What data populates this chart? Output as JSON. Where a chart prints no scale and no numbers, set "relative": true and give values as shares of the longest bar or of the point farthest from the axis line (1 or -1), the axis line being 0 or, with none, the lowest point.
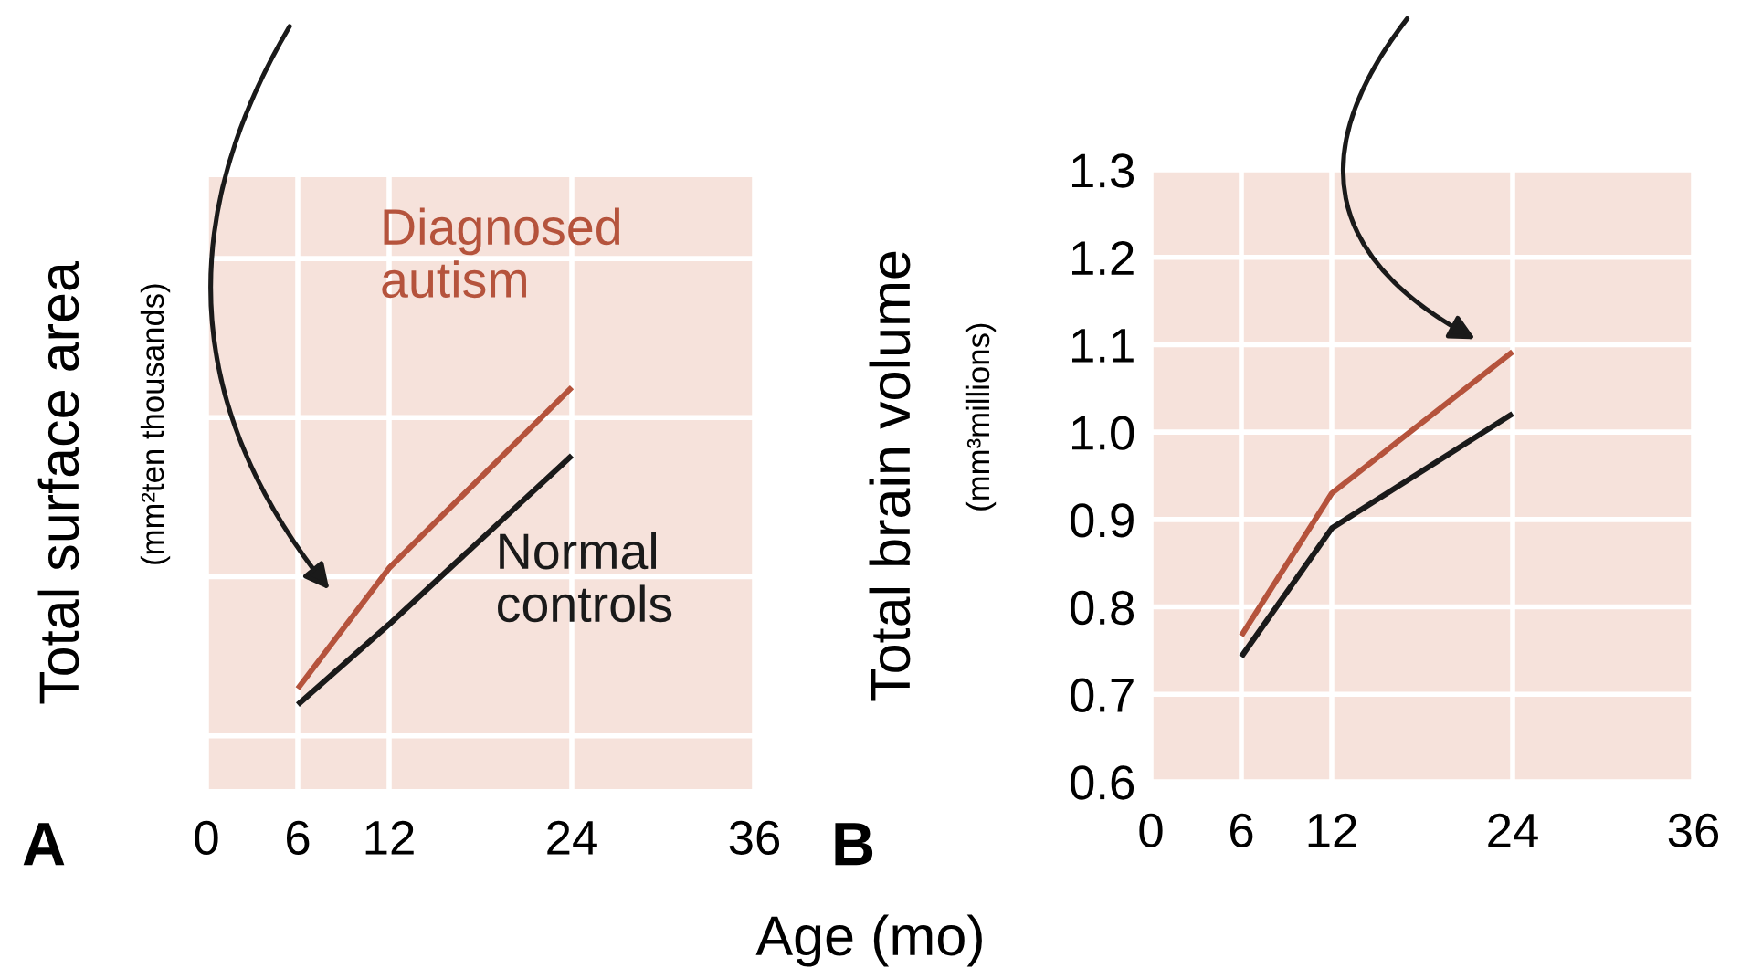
{
  "chart_data": [
    {
      "type": "line",
      "relative": true,
      "xlabel": "Age (mo)",
      "ylabel": "Total surface area\n(mm²ten thousands)",
      "x": [
        6,
        12,
        24
      ],
      "xlim": [
        0,
        36
      ],
      "xticks": [
        0,
        6,
        12,
        24,
        36
      ],
      "grid": true,
      "annotations": [
        "A"
      ],
      "series": [
        {
          "name": "Diagnosed autism",
          "color": "#b5533c",
          "values": [
            0.25,
            0.55,
            1
          ]
        },
        {
          "name": "Normal controls",
          "color": "#1a1a1a",
          "values": [
            0.21,
            0.41,
            0.83
          ]
        }
      ]
    },
    {
      "type": "line",
      "ylabel": "Total brain volume\n(mm³millions)",
      "x": [
        6,
        12,
        24
      ],
      "xlim": [
        0,
        36
      ],
      "xticks": [
        0,
        6,
        12,
        24,
        36
      ],
      "ylim": [
        0.6,
        1.3
      ],
      "yticks": [
        {
          "value": 0.6,
          "label": "0.6"
        },
        {
          "value": 0.7,
          "label": "0.7"
        },
        {
          "value": 0.8,
          "label": "0.8"
        },
        {
          "value": 0.9,
          "label": "0.9"
        },
        {
          "value": 1.0,
          "label": "1.0"
        },
        {
          "value": 1.1,
          "label": "1.1"
        },
        {
          "value": 1.2,
          "label": "1.2"
        },
        {
          "value": 1.3,
          "label": "1.3"
        }
      ],
      "grid": true,
      "annotations": [
        "B"
      ],
      "series": [
        {
          "color": "#b5533c",
          "values": [
            0.767,
            0.93,
            1.092
          ]
        },
        {
          "color": "#1a1a1a",
          "values": [
            0.743,
            0.89,
            1.021
          ]
        }
      ]
    }
  ]
}
